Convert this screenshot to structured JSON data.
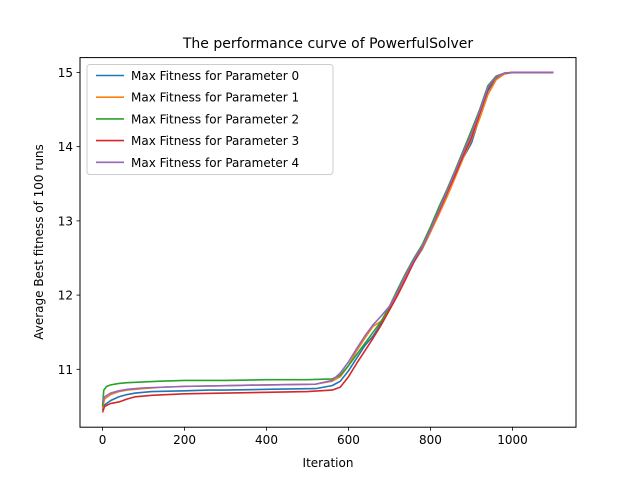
{
  "chart_data": {
    "type": "line",
    "title": "The performance curve of PowerfulSolver",
    "xlabel": "Iteration",
    "ylabel": "Average Best fitness of 100 runs",
    "xlim": [
      -55,
      1155
    ],
    "ylim": [
      10.22,
      15.2
    ],
    "xticks": [
      0,
      200,
      400,
      600,
      800,
      1000
    ],
    "yticks": [
      11,
      12,
      13,
      14,
      15
    ],
    "grid": false,
    "legend_position": "upper left",
    "series": [
      {
        "name": "Max Fitness for Parameter 0",
        "color": "#1f77b4",
        "x": [
          0,
          5,
          20,
          40,
          60,
          80,
          120,
          200,
          260,
          300,
          400,
          520,
          560,
          580,
          600,
          620,
          640,
          660,
          680,
          700,
          720,
          740,
          760,
          780,
          800,
          820,
          840,
          860,
          880,
          900,
          920,
          940,
          960,
          980,
          1000,
          1100
        ],
        "y": [
          10.45,
          10.52,
          10.58,
          10.63,
          10.66,
          10.68,
          10.7,
          10.71,
          10.72,
          10.72,
          10.73,
          10.74,
          10.78,
          10.84,
          10.98,
          11.15,
          11.32,
          11.45,
          11.62,
          11.82,
          12.02,
          12.25,
          12.45,
          12.62,
          12.85,
          13.1,
          13.35,
          13.6,
          13.85,
          14.05,
          14.4,
          14.75,
          14.92,
          14.98,
          15.0,
          15.0
        ]
      },
      {
        "name": "Max Fitness for Parameter 1",
        "color": "#ff7f0e",
        "x": [
          0,
          5,
          20,
          40,
          60,
          100,
          150,
          200,
          300,
          400,
          520,
          560,
          580,
          600,
          620,
          640,
          660,
          680,
          700,
          720,
          740,
          760,
          780,
          800,
          820,
          840,
          860,
          880,
          900,
          920,
          940,
          960,
          980,
          1000,
          1100
        ],
        "y": [
          10.48,
          10.6,
          10.66,
          10.7,
          10.72,
          10.74,
          10.76,
          10.77,
          10.78,
          10.79,
          10.8,
          10.84,
          10.9,
          11.05,
          11.25,
          11.42,
          11.58,
          11.65,
          11.8,
          12.02,
          12.25,
          12.45,
          12.63,
          12.85,
          13.08,
          13.32,
          13.58,
          13.85,
          14.1,
          14.38,
          14.7,
          14.9,
          14.98,
          15.0,
          15.0
        ]
      },
      {
        "name": "Max Fitness for Parameter 2",
        "color": "#2ca02c",
        "x": [
          0,
          3,
          10,
          20,
          40,
          60,
          100,
          140,
          200,
          300,
          400,
          500,
          560,
          580,
          600,
          620,
          640,
          660,
          680,
          700,
          720,
          740,
          760,
          780,
          800,
          820,
          840,
          860,
          880,
          900,
          920,
          940,
          960,
          980,
          1000,
          1100
        ],
        "y": [
          10.5,
          10.72,
          10.77,
          10.79,
          10.81,
          10.82,
          10.83,
          10.84,
          10.85,
          10.85,
          10.86,
          10.86,
          10.87,
          10.92,
          11.05,
          11.2,
          11.35,
          11.5,
          11.65,
          11.85,
          12.08,
          12.3,
          12.5,
          12.68,
          12.92,
          13.18,
          13.42,
          13.68,
          13.95,
          14.22,
          14.5,
          14.82,
          14.95,
          14.99,
          15.0,
          15.0
        ]
      },
      {
        "name": "Max Fitness for Parameter 3",
        "color": "#d62728",
        "x": [
          0,
          5,
          20,
          40,
          60,
          80,
          120,
          160,
          200,
          300,
          400,
          500,
          560,
          580,
          600,
          620,
          640,
          660,
          680,
          700,
          720,
          740,
          760,
          780,
          800,
          820,
          840,
          860,
          880,
          900,
          920,
          940,
          960,
          980,
          1000,
          1100
        ],
        "y": [
          10.42,
          10.5,
          10.54,
          10.56,
          10.6,
          10.63,
          10.65,
          10.66,
          10.67,
          10.68,
          10.69,
          10.7,
          10.72,
          10.76,
          10.9,
          11.08,
          11.25,
          11.42,
          11.6,
          11.8,
          12.0,
          12.22,
          12.45,
          12.65,
          12.88,
          13.12,
          13.38,
          13.62,
          13.88,
          14.12,
          14.45,
          14.78,
          14.94,
          14.99,
          15.0,
          15.0
        ]
      },
      {
        "name": "Max Fitness for Parameter 4",
        "color": "#9467bd",
        "x": [
          0,
          5,
          20,
          40,
          60,
          100,
          150,
          200,
          300,
          400,
          520,
          560,
          580,
          600,
          620,
          640,
          660,
          680,
          700,
          720,
          740,
          760,
          780,
          800,
          820,
          840,
          860,
          880,
          900,
          920,
          940,
          960,
          980,
          1000,
          1100
        ],
        "y": [
          10.55,
          10.63,
          10.68,
          10.71,
          10.73,
          10.75,
          10.76,
          10.77,
          10.78,
          10.79,
          10.8,
          10.85,
          10.95,
          11.1,
          11.28,
          11.45,
          11.6,
          11.72,
          11.85,
          12.05,
          12.28,
          12.48,
          12.66,
          12.88,
          13.14,
          13.4,
          13.66,
          13.92,
          14.18,
          14.48,
          14.8,
          14.94,
          14.99,
          15.0,
          15.0
        ]
      }
    ]
  }
}
